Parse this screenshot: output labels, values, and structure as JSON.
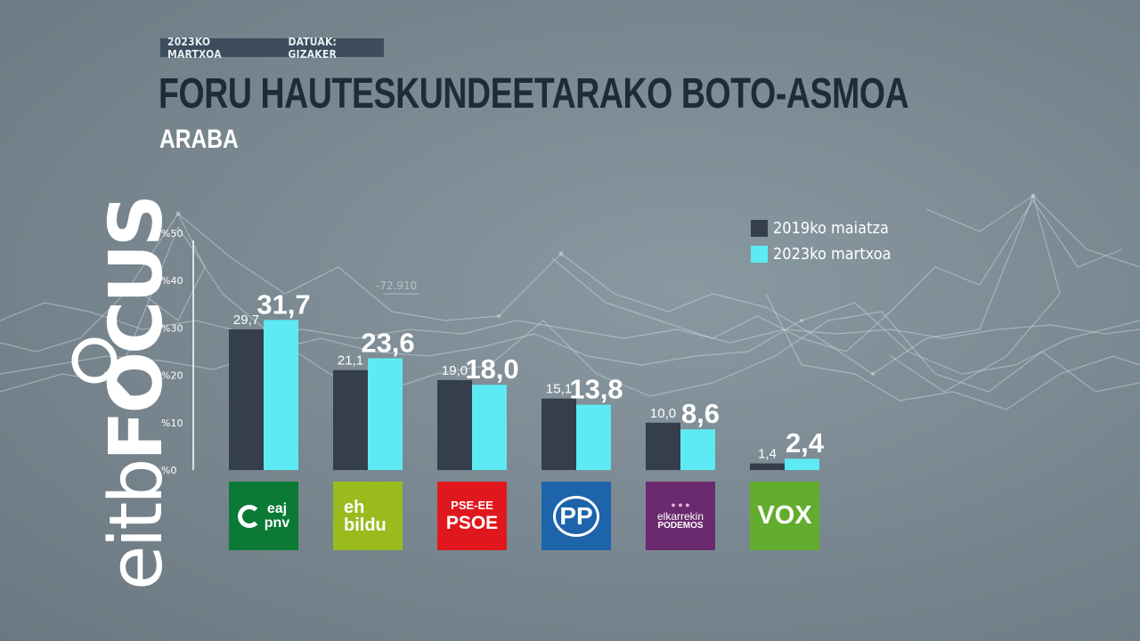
{
  "header": {
    "date_label": "2023KO MARTXOA",
    "source_label": "DATUAK: GIZAKER"
  },
  "brand": {
    "name_light": "eitb",
    "name_bold": "FOCUS"
  },
  "background_annotation": "-72.910",
  "colors": {
    "series_2019": "#353e4c",
    "series_2023": "#5deaf4",
    "title": "#1f2a3a",
    "eaj_pnv": "#0a7a36",
    "eh_bildu": "#9aba1e",
    "pse_ee_psoe": "#e0181e",
    "pp": "#1d64aa",
    "elkarrekin_podemos": "#6c2a6e",
    "vox": "#63ad2e"
  },
  "parties": [
    {
      "key": "eaj",
      "line1": "eaj",
      "line2": "pnv",
      "icon": "eaj-pnv-logo-icon",
      "color": "#0a7a36"
    },
    {
      "key": "bildu",
      "line1": "eh",
      "line2": "bildu",
      "icon": "eh-bildu-logo-icon",
      "color": "#9aba1e"
    },
    {
      "key": "psoe",
      "line1": "PSE-EE",
      "line2": "PSOE",
      "icon": "psoe-logo-icon",
      "color": "#e0181e"
    },
    {
      "key": "pp",
      "line1": "PP",
      "line2": "",
      "icon": "pp-logo-icon",
      "color": "#1d64aa"
    },
    {
      "key": "podemos",
      "line1": "elkarrekin",
      "line2": "PODEMOS",
      "icon": "elkarrekin-podemos-logo-icon",
      "color": "#6c2a6e"
    },
    {
      "key": "vox",
      "line1": "VOX",
      "line2": "",
      "icon": "vox-logo-icon",
      "color": "#63ad2e"
    }
  ],
  "chart_data": {
    "type": "bar",
    "title": "FORU HAUTESKUNDEETARAKO BOTO-ASMOA",
    "subtitle": "ARABA",
    "categories": [
      "EAJ-PNV",
      "EH Bildu",
      "PSE-EE PSOE",
      "PP",
      "Elkarrekin Podemos",
      "VOX"
    ],
    "series": [
      {
        "name": "2019ko maiatza",
        "values": [
          29.7,
          21.1,
          19.0,
          15.1,
          10.0,
          1.4
        ],
        "labels": [
          "29,7",
          "21,1",
          "19,0",
          "15,1",
          "10,0",
          "1,4"
        ]
      },
      {
        "name": "2023ko martxoa",
        "values": [
          31.7,
          23.6,
          18.0,
          13.8,
          8.6,
          2.4
        ],
        "labels": [
          "31,7",
          "23,6",
          "18,0",
          "13,8",
          "8,6",
          "2,4"
        ]
      }
    ],
    "ylim": [
      0,
      50
    ],
    "yticks": [
      0,
      10,
      20,
      30,
      40,
      50
    ],
    "ytick_labels": [
      "%0",
      "%10",
      "%20",
      "%30",
      "%40",
      "%50"
    ],
    "xlabel": "",
    "ylabel": "",
    "grid": false,
    "legend_position": "top-right"
  }
}
